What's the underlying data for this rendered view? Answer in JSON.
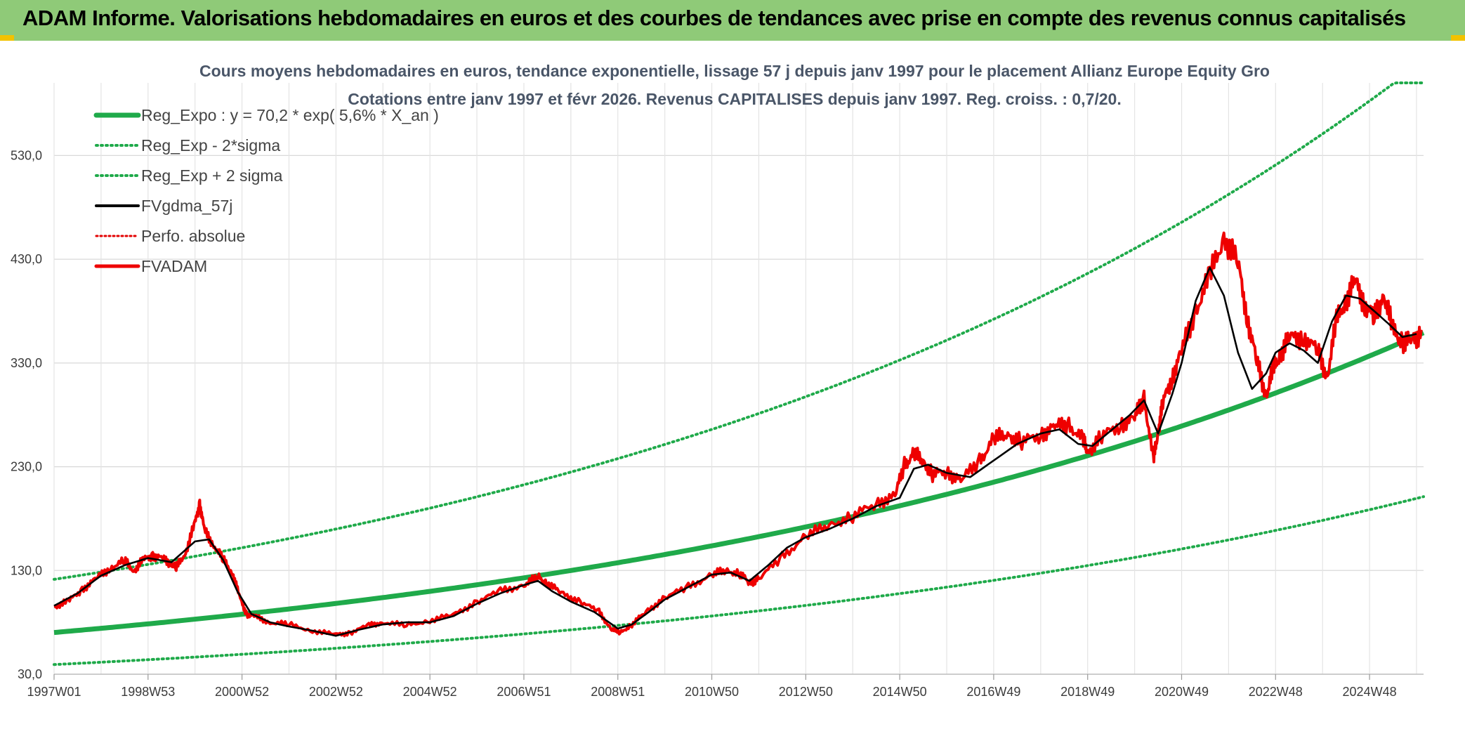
{
  "banner": {
    "title": "ADAM Informe. Valorisations hebdomadaires en euros et des courbes de tendances avec prise en compte des revenus connus capitalisés"
  },
  "colors": {
    "banner_bg": "#8fca78",
    "reg_expo": "#1faa4a",
    "sigma": "#1faa4a",
    "fvgdma": "#000000",
    "perfo": "#e30000",
    "fvadam": "#ee0000"
  },
  "chart_data": {
    "type": "line",
    "title": [
      "Cours moyens hebdomadaires en euros, tendance exponentielle, lissage 57 j depuis janv 1997 pour le placement Allianz Europe Equity Gro",
      "Cotations entre janv 1997 et févr 2026. Revenus CAPITALISES depuis janv 1997. Reg. croiss. : 0,7/20."
    ],
    "x_range": [
      1997.0,
      2026.15
    ],
    "ylim": [
      30,
      600
    ],
    "y_ticks": [
      30,
      130,
      230,
      330,
      430,
      530
    ],
    "y_tick_labels": [
      "30,0",
      "130,0",
      "230,0",
      "330,0",
      "430,0",
      "530,0"
    ],
    "x_ticks": [
      {
        "label": "1997W01",
        "x": 1997.0
      },
      {
        "label": "1998W53",
        "x": 1999.0
      },
      {
        "label": "2000W52",
        "x": 2001.0
      },
      {
        "label": "2002W52",
        "x": 2003.0
      },
      {
        "label": "2004W52",
        "x": 2005.0
      },
      {
        "label": "2006W51",
        "x": 2007.0
      },
      {
        "label": "2008W51",
        "x": 2009.0
      },
      {
        "label": "2010W50",
        "x": 2011.0
      },
      {
        "label": "2012W50",
        "x": 2013.0
      },
      {
        "label": "2014W50",
        "x": 2015.0
      },
      {
        "label": "2016W49",
        "x": 2017.0
      },
      {
        "label": "2018W49",
        "x": 2019.0
      },
      {
        "label": "2020W49",
        "x": 2021.0
      },
      {
        "label": "2022W48",
        "x": 2023.0
      },
      {
        "label": "2024W48",
        "x": 2025.0
      }
    ],
    "grid": true,
    "legend_position": "top-left",
    "legend": [
      {
        "key": "reg_expo",
        "label": "Reg_Expo : y = 70,2 * exp( 5,6% *  X_an )",
        "style": "solid-thick"
      },
      {
        "key": "reg_minus",
        "label": "Reg_Exp - 2*sigma",
        "style": "dotted-green"
      },
      {
        "key": "reg_plus",
        "label": "Reg_Exp + 2 sigma",
        "style": "dotted-green"
      },
      {
        "key": "fvgdma",
        "label": "FVgdma_57j",
        "style": "solid-black"
      },
      {
        "key": "perfo",
        "label": "Perfo. absolue",
        "style": "dotted-red"
      },
      {
        "key": "fvadam",
        "label": "FVADAM",
        "style": "solid-red"
      }
    ],
    "series": [
      {
        "name": "Reg_Expo : y = 70,2 * exp( 5,6% *  X_an )",
        "model": "exp",
        "a": 70.2,
        "rate": 0.056
      },
      {
        "name": "Reg_Exp - 2*sigma",
        "model": "exp_scaled",
        "factor": 0.56
      },
      {
        "name": "Reg_Exp + 2 sigma",
        "model": "exp_scaled",
        "factor": 1.73,
        "cap": 600
      },
      {
        "name": "FVADAM",
        "x": [
          1997.0,
          1997.3,
          1997.6,
          1997.9,
          1998.2,
          1998.5,
          1998.7,
          1998.9,
          1999.1,
          1999.3,
          1999.5,
          1999.6,
          1999.8,
          2000.0,
          2000.1,
          2000.2,
          2000.4,
          2000.6,
          2000.8,
          2000.95,
          2001.1,
          2001.3,
          2001.6,
          2002.0,
          2002.5,
          2003.0,
          2003.3,
          2003.7,
          2004.0,
          2004.5,
          2005.0,
          2005.5,
          2006.0,
          2006.5,
          2007.0,
          2007.3,
          2007.5,
          2007.8,
          2008.2,
          2008.6,
          2008.85,
          2009.05,
          2009.3,
          2009.6,
          2010.0,
          2010.5,
          2011.0,
          2011.3,
          2011.6,
          2011.8,
          2012.0,
          2012.5,
          2013.0,
          2013.5,
          2014.0,
          2014.5,
          2014.9,
          2015.1,
          2015.3,
          2015.5,
          2015.7,
          2016.0,
          2016.3,
          2016.7,
          2017.0,
          2017.3,
          2017.6,
          2018.0,
          2018.3,
          2018.6,
          2018.9,
          2019.0,
          2019.3,
          2019.7,
          2020.0,
          2020.2,
          2020.4,
          2020.5,
          2020.6,
          2020.8,
          2021.0,
          2021.3,
          2021.6,
          2021.9,
          2022.2,
          2022.4,
          2022.6,
          2022.8,
          2022.95,
          2023.1,
          2023.3,
          2023.6,
          2023.9,
          2024.1,
          2024.3,
          2024.5,
          2024.7,
          2024.9,
          2025.1,
          2025.3,
          2025.5,
          2025.7,
          2025.9,
          2026.1
        ],
        "y": [
          95,
          100,
          112,
          122,
          133,
          139,
          130,
          140,
          145,
          141,
          137,
          132,
          148,
          175,
          195,
          168,
          155,
          140,
          128,
          104,
          88,
          85,
          80,
          78,
          72,
          68,
          70,
          77,
          80,
          77,
          82,
          87,
          100,
          110,
          116,
          124,
          118,
          108,
          100,
          90,
          74,
          70,
          78,
          90,
          104,
          114,
          126,
          130,
          127,
          118,
          122,
          143,
          163,
          174,
          182,
          195,
          202,
          232,
          242,
          236,
          222,
          226,
          216,
          236,
          256,
          262,
          253,
          262,
          268,
          271,
          255,
          245,
          258,
          272,
          276,
          298,
          235,
          265,
          290,
          318,
          340,
          382,
          412,
          453,
          425,
          375,
          330,
          300,
          322,
          340,
          353,
          357,
          340,
          318,
          370,
          392,
          408,
          388,
          372,
          398,
          360,
          352,
          349,
          362
        ]
      },
      {
        "name": "FVgdma_57j",
        "x": [
          1997.0,
          1997.5,
          1998.0,
          1998.5,
          1999.0,
          1999.5,
          2000.0,
          2000.3,
          2000.6,
          2000.9,
          2001.2,
          2001.6,
          2002.0,
          2002.5,
          2003.0,
          2003.5,
          2004.0,
          2004.5,
          2005.0,
          2005.5,
          2006.0,
          2006.5,
          2007.0,
          2007.3,
          2007.6,
          2008.0,
          2008.5,
          2009.0,
          2009.3,
          2009.6,
          2010.0,
          2010.5,
          2011.0,
          2011.4,
          2011.8,
          2012.2,
          2012.6,
          2013.0,
          2013.5,
          2014.0,
          2014.5,
          2015.0,
          2015.3,
          2015.6,
          2016.0,
          2016.5,
          2017.0,
          2017.5,
          2018.0,
          2018.4,
          2018.8,
          2019.1,
          2019.5,
          2019.9,
          2020.2,
          2020.5,
          2020.8,
          2021.0,
          2021.3,
          2021.6,
          2021.9,
          2022.2,
          2022.5,
          2022.8,
          2023.0,
          2023.3,
          2023.6,
          2023.9,
          2024.2,
          2024.5,
          2024.8,
          2025.1,
          2025.4,
          2025.7,
          2026.0
        ],
        "y": [
          96,
          108,
          125,
          135,
          142,
          138,
          158,
          160,
          140,
          110,
          88,
          80,
          76,
          72,
          67,
          73,
          78,
          80,
          80,
          86,
          98,
          108,
          116,
          120,
          110,
          100,
          90,
          74,
          78,
          88,
          102,
          114,
          126,
          128,
          120,
          135,
          152,
          162,
          170,
          180,
          192,
          200,
          228,
          232,
          224,
          220,
          236,
          252,
          262,
          266,
          252,
          250,
          265,
          280,
          294,
          262,
          300,
          330,
          390,
          422,
          395,
          340,
          305,
          320,
          340,
          349,
          342,
          330,
          370,
          395,
          392,
          380,
          368,
          355,
          358
        ]
      }
    ]
  }
}
